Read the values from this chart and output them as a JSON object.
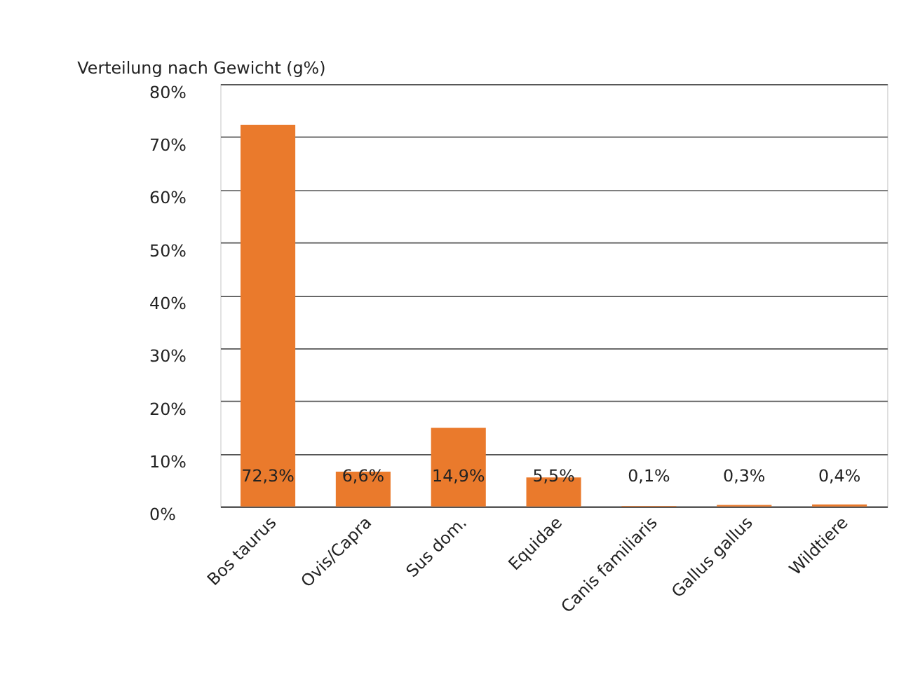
{
  "chart_data": {
    "type": "bar",
    "title": "Verteilung nach Gewicht (g%)",
    "categories": [
      "Bos taurus",
      "Ovis/Capra",
      "Sus dom.",
      "Equidae",
      "Canis familiaris",
      "Gallus gallus",
      "Wildtiere"
    ],
    "values": [
      72.3,
      6.6,
      14.9,
      5.5,
      0.1,
      0.3,
      0.4
    ],
    "value_labels": [
      "72,3%",
      "6,6%",
      "14,9%",
      "5,5%",
      "0,1%",
      "0,3%",
      "0,4%"
    ],
    "color": "#ea7a2c",
    "ylim": [
      0,
      80
    ],
    "yticks": [
      {
        "value": 0,
        "label": "0%"
      },
      {
        "value": 10,
        "label": "10%"
      },
      {
        "value": 20,
        "label": "20%"
      },
      {
        "value": 30,
        "label": "30%"
      },
      {
        "value": 40,
        "label": "40%"
      },
      {
        "value": 50,
        "label": "50%"
      },
      {
        "value": 60,
        "label": "60%"
      },
      {
        "value": 70,
        "label": "70%"
      },
      {
        "value": 80,
        "label": "80%"
      }
    ],
    "grid": "y"
  }
}
